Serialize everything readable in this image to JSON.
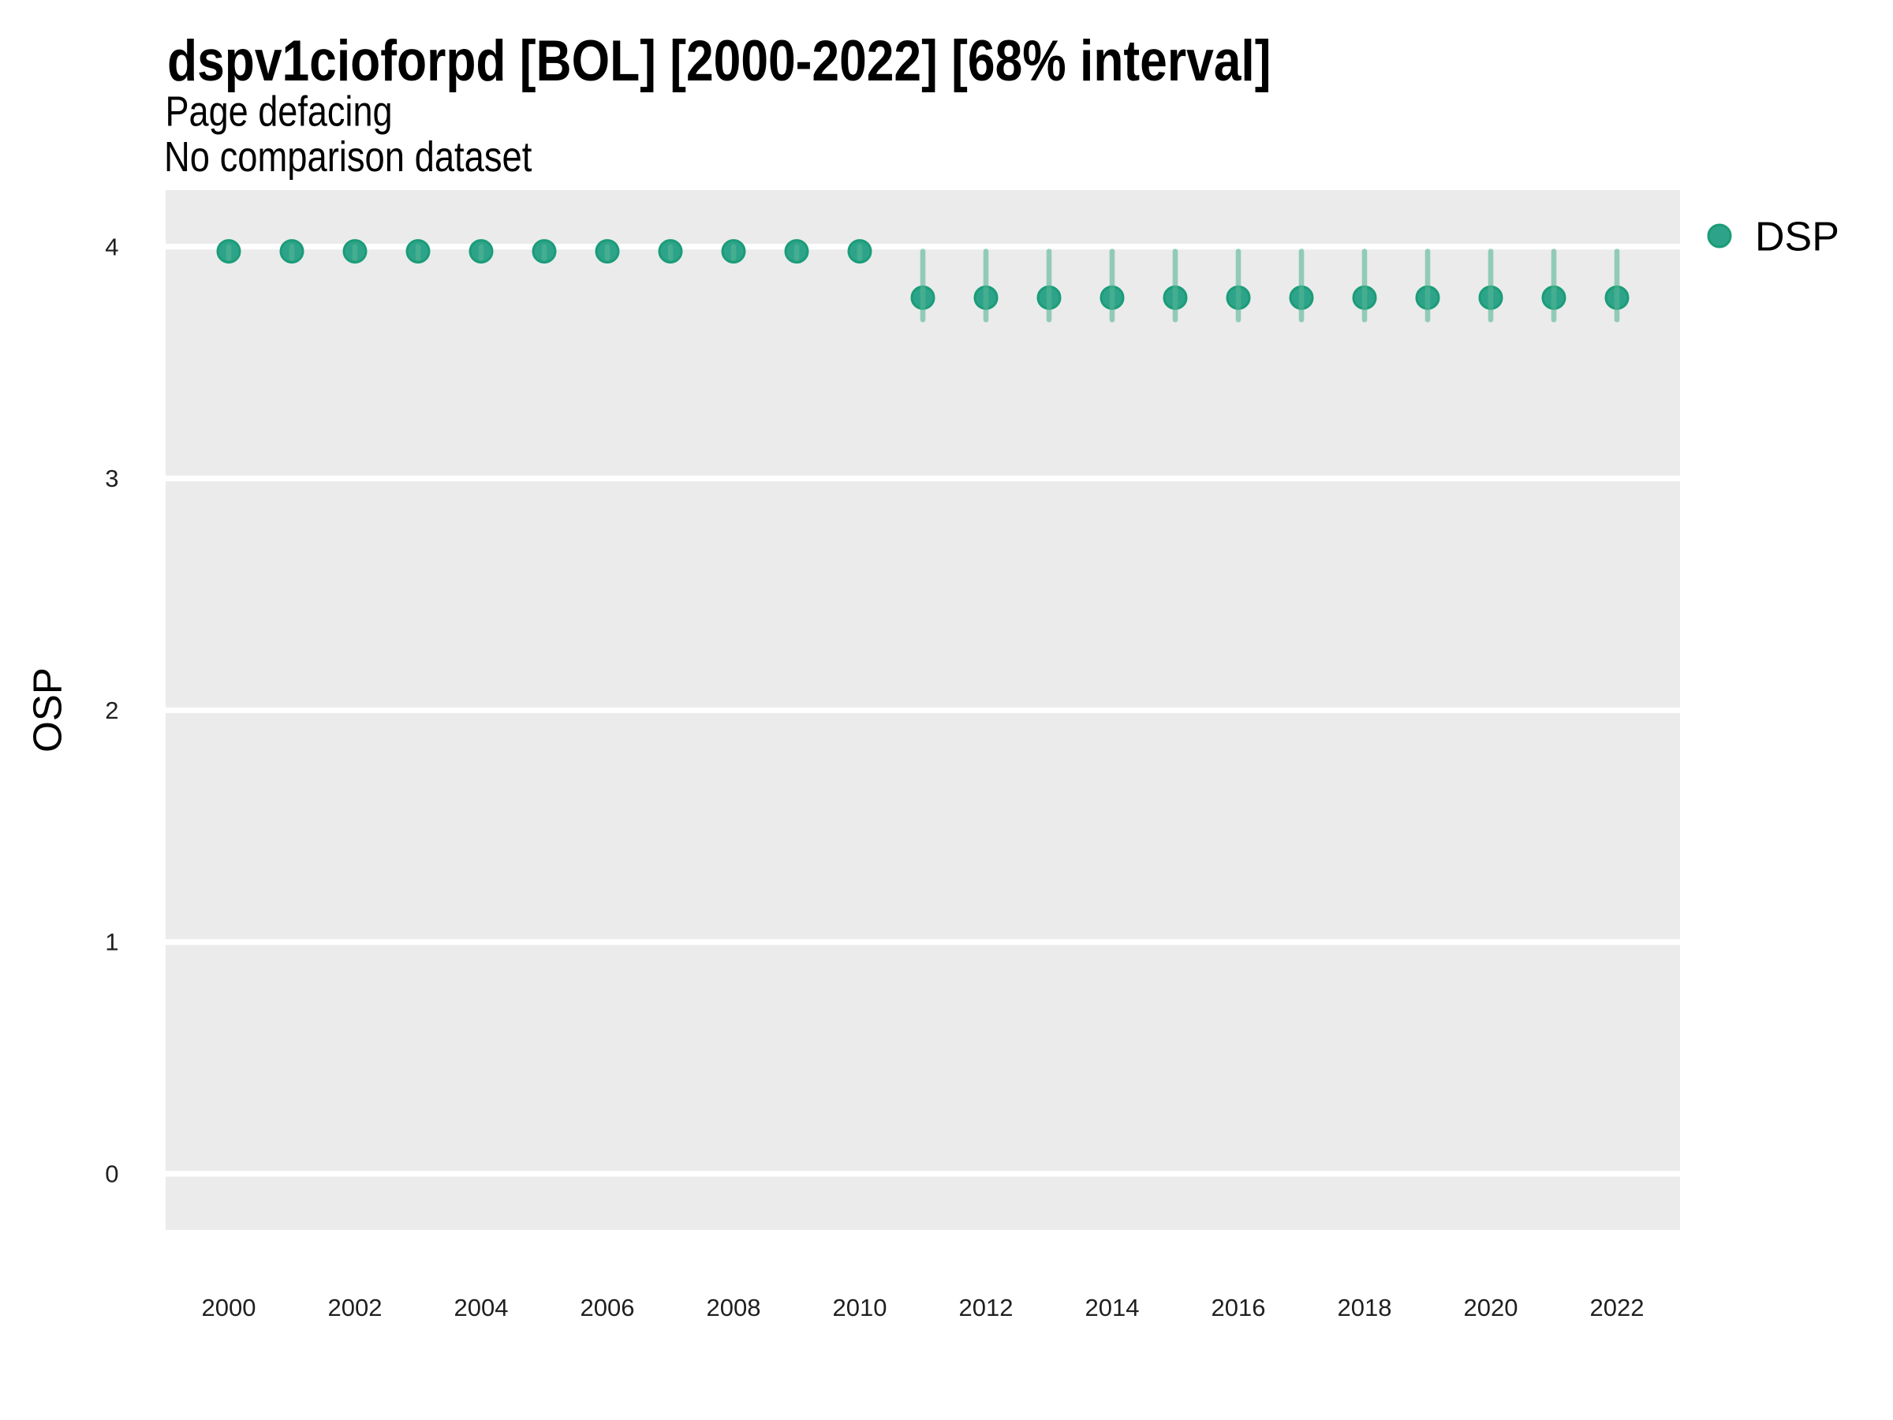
{
  "title": "dspv1cioforpd [BOL] [2000-2022] [68% interval]",
  "subtitle": "Page defacing",
  "subtitle2": "No comparison dataset",
  "legend": {
    "label": "DSP",
    "position": "right-top",
    "marker": "circle"
  },
  "chart_data": {
    "type": "scatter",
    "title": "dspv1cioforpd [BOL] [2000-2022] [68% interval]",
    "subtitle": "Page defacing",
    "comparison_note": "No comparison dataset",
    "xlabel": "",
    "ylabel": "OSP",
    "x_range": [
      1999,
      2023
    ],
    "y_range": [
      -0.242,
      4.244
    ],
    "x_ticks": [
      2000,
      2002,
      2004,
      2006,
      2008,
      2010,
      2012,
      2014,
      2016,
      2018,
      2020,
      2022
    ],
    "y_ticks": [
      0,
      1,
      2,
      3,
      4
    ],
    "grid": "horizontal-major-only",
    "legend_position": "right-top",
    "interval_level": "68%",
    "series": [
      {
        "name": "DSP",
        "points": [
          {
            "x": 2000,
            "y": 3.98,
            "lo": 3.95,
            "hi": 4.0
          },
          {
            "x": 2001,
            "y": 3.98,
            "lo": 3.95,
            "hi": 4.0
          },
          {
            "x": 2002,
            "y": 3.98,
            "lo": 3.95,
            "hi": 4.0
          },
          {
            "x": 2003,
            "y": 3.98,
            "lo": 3.95,
            "hi": 4.0
          },
          {
            "x": 2004,
            "y": 3.98,
            "lo": 3.95,
            "hi": 4.0
          },
          {
            "x": 2005,
            "y": 3.98,
            "lo": 3.95,
            "hi": 4.0
          },
          {
            "x": 2006,
            "y": 3.98,
            "lo": 3.95,
            "hi": 4.0
          },
          {
            "x": 2007,
            "y": 3.98,
            "lo": 3.95,
            "hi": 4.0
          },
          {
            "x": 2008,
            "y": 3.98,
            "lo": 3.95,
            "hi": 4.0
          },
          {
            "x": 2009,
            "y": 3.98,
            "lo": 3.95,
            "hi": 4.0
          },
          {
            "x": 2010,
            "y": 3.98,
            "lo": 3.95,
            "hi": 4.0
          },
          {
            "x": 2011,
            "y": 3.78,
            "lo": 3.685,
            "hi": 3.98
          },
          {
            "x": 2012,
            "y": 3.78,
            "lo": 3.685,
            "hi": 3.98
          },
          {
            "x": 2013,
            "y": 3.78,
            "lo": 3.685,
            "hi": 3.98
          },
          {
            "x": 2014,
            "y": 3.78,
            "lo": 3.685,
            "hi": 3.98
          },
          {
            "x": 2015,
            "y": 3.78,
            "lo": 3.685,
            "hi": 3.98
          },
          {
            "x": 2016,
            "y": 3.78,
            "lo": 3.685,
            "hi": 3.98
          },
          {
            "x": 2017,
            "y": 3.78,
            "lo": 3.685,
            "hi": 3.98
          },
          {
            "x": 2018,
            "y": 3.78,
            "lo": 3.685,
            "hi": 3.98
          },
          {
            "x": 2019,
            "y": 3.78,
            "lo": 3.685,
            "hi": 3.98
          },
          {
            "x": 2020,
            "y": 3.78,
            "lo": 3.685,
            "hi": 3.98
          },
          {
            "x": 2021,
            "y": 3.78,
            "lo": 3.685,
            "hi": 3.98
          },
          {
            "x": 2022,
            "y": 3.78,
            "lo": 3.685,
            "hi": 3.98
          }
        ]
      }
    ],
    "colors": {
      "panel_background": "#EBEBEB",
      "gridline": "#FFFFFF",
      "point_fill": "#2DA489",
      "point_stroke": "#1B9C78",
      "errorbar": "#55B694",
      "errorbar_opacity": 0.6,
      "tick_label": "#1f1f1f",
      "text": "#000000",
      "background": "#FFFFFF"
    }
  }
}
